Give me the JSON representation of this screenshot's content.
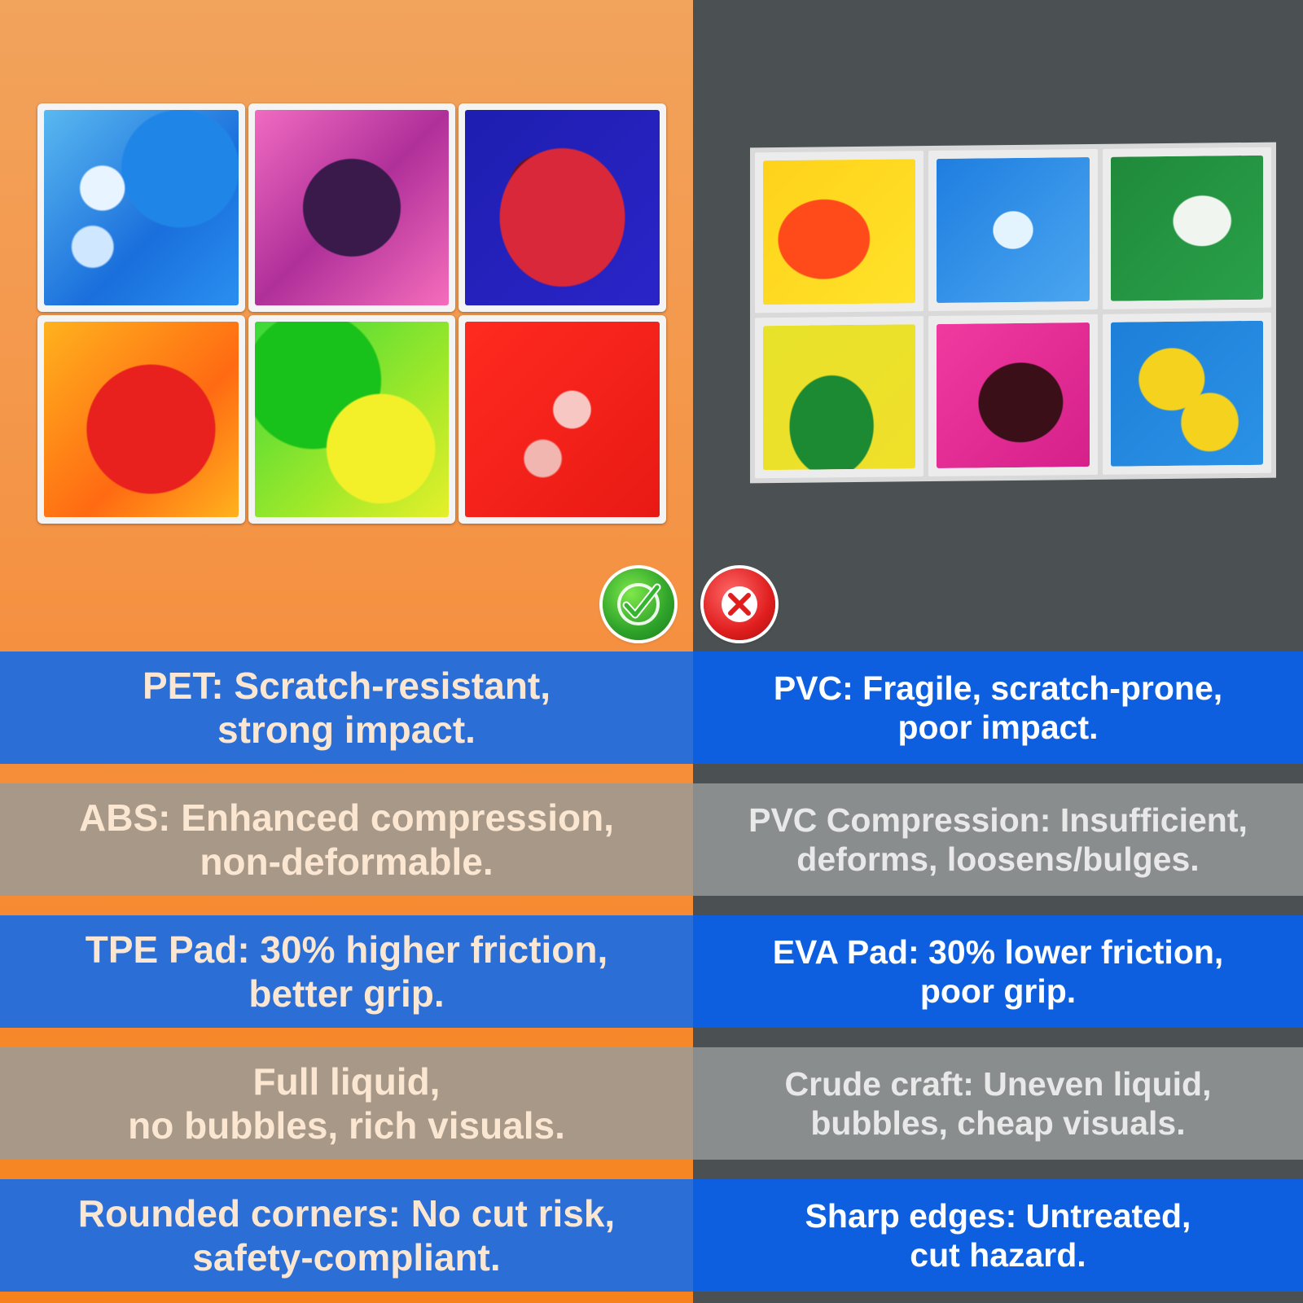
{
  "colors": {
    "left_background": "#f59040",
    "right_background": "#4b5153",
    "left_blue_row": "#2a6ed6",
    "left_tan_row": "#a89888",
    "right_blue_row": "#0e5fe0",
    "right_gray_row": "#8a8d8e"
  },
  "icons": {
    "good_badge": "green-check-circle-icon",
    "bad_badge": "red-x-circle-icon"
  },
  "comparison": {
    "good": [
      {
        "text": "PET: Scratch-resistant,\nstrong impact."
      },
      {
        "text": "ABS: Enhanced compression,\nnon-deformable."
      },
      {
        "text": "TPE Pad: 30% higher friction,\nbetter grip."
      },
      {
        "text": "Full liquid,\nno bubbles, rich visuals."
      },
      {
        "text": "Rounded corners: No cut risk,\nsafety-compliant."
      }
    ],
    "bad": [
      {
        "text": "PVC: Fragile, scratch-prone,\npoor impact."
      },
      {
        "text": "PVC Compression: Insufficient,\ndeforms, loosens/bulges."
      },
      {
        "text": "EVA Pad: 30% lower friction,\npoor grip."
      },
      {
        "text": "Crude craft: Uneven liquid,\nbubbles, cheap visuals."
      },
      {
        "text": "Sharp edges: Untreated,\ncut hazard."
      }
    ]
  }
}
